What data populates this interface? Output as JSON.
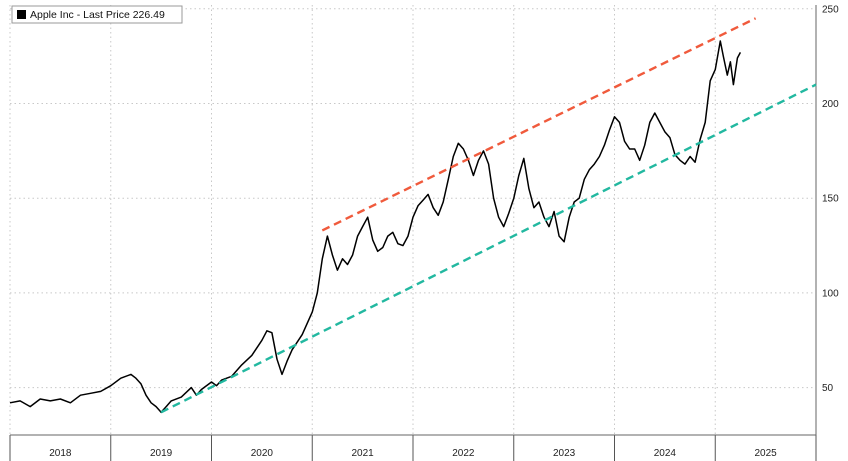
{
  "chart_data": {
    "type": "line",
    "legend": {
      "label": "Apple Inc - Last Price 226.49",
      "color": "#000000",
      "placement": "top-left"
    },
    "x_ticks": [
      "2018",
      "2019",
      "2020",
      "2021",
      "2022",
      "2023",
      "2024",
      "2025"
    ],
    "y_ticks": [
      50,
      100,
      150,
      200,
      250
    ],
    "xlim": [
      2017.5,
      2025.5
    ],
    "ylim": [
      25,
      252
    ],
    "grid": true,
    "series": [
      {
        "color": "#000000",
        "points": [
          [
            2017.5,
            42
          ],
          [
            2017.6,
            43
          ],
          [
            2017.7,
            40
          ],
          [
            2017.8,
            44
          ],
          [
            2017.9,
            43
          ],
          [
            2018.0,
            44
          ],
          [
            2018.1,
            42
          ],
          [
            2018.2,
            46
          ],
          [
            2018.3,
            47
          ],
          [
            2018.4,
            48
          ],
          [
            2018.5,
            51
          ],
          [
            2018.6,
            55
          ],
          [
            2018.7,
            57
          ],
          [
            2018.75,
            55
          ],
          [
            2018.8,
            52
          ],
          [
            2018.85,
            46
          ],
          [
            2018.9,
            42
          ],
          [
            2018.95,
            40
          ],
          [
            2019.0,
            37
          ],
          [
            2019.05,
            40
          ],
          [
            2019.1,
            43
          ],
          [
            2019.2,
            45
          ],
          [
            2019.3,
            50
          ],
          [
            2019.35,
            46
          ],
          [
            2019.4,
            49
          ],
          [
            2019.5,
            53
          ],
          [
            2019.55,
            51
          ],
          [
            2019.6,
            54
          ],
          [
            2019.7,
            56
          ],
          [
            2019.8,
            62
          ],
          [
            2019.9,
            67
          ],
          [
            2020.0,
            75
          ],
          [
            2020.05,
            80
          ],
          [
            2020.1,
            79
          ],
          [
            2020.15,
            65
          ],
          [
            2020.2,
            57
          ],
          [
            2020.25,
            64
          ],
          [
            2020.3,
            70
          ],
          [
            2020.4,
            78
          ],
          [
            2020.5,
            90
          ],
          [
            2020.55,
            100
          ],
          [
            2020.6,
            118
          ],
          [
            2020.65,
            130
          ],
          [
            2020.7,
            120
          ],
          [
            2020.75,
            112
          ],
          [
            2020.8,
            118
          ],
          [
            2020.85,
            115
          ],
          [
            2020.9,
            120
          ],
          [
            2020.95,
            130
          ],
          [
            2021.0,
            135
          ],
          [
            2021.05,
            140
          ],
          [
            2021.1,
            128
          ],
          [
            2021.15,
            122
          ],
          [
            2021.2,
            124
          ],
          [
            2021.25,
            130
          ],
          [
            2021.3,
            132
          ],
          [
            2021.35,
            126
          ],
          [
            2021.4,
            125
          ],
          [
            2021.45,
            130
          ],
          [
            2021.5,
            140
          ],
          [
            2021.55,
            146
          ],
          [
            2021.6,
            149
          ],
          [
            2021.65,
            152
          ],
          [
            2021.7,
            145
          ],
          [
            2021.75,
            141
          ],
          [
            2021.8,
            148
          ],
          [
            2021.85,
            160
          ],
          [
            2021.9,
            172
          ],
          [
            2021.95,
            179
          ],
          [
            2022.0,
            176
          ],
          [
            2022.05,
            170
          ],
          [
            2022.1,
            162
          ],
          [
            2022.15,
            170
          ],
          [
            2022.2,
            175
          ],
          [
            2022.25,
            168
          ],
          [
            2022.3,
            150
          ],
          [
            2022.35,
            140
          ],
          [
            2022.4,
            135
          ],
          [
            2022.45,
            142
          ],
          [
            2022.5,
            150
          ],
          [
            2022.55,
            162
          ],
          [
            2022.6,
            171
          ],
          [
            2022.65,
            155
          ],
          [
            2022.7,
            145
          ],
          [
            2022.75,
            148
          ],
          [
            2022.8,
            140
          ],
          [
            2022.85,
            135
          ],
          [
            2022.9,
            143
          ],
          [
            2022.95,
            130
          ],
          [
            2023.0,
            127
          ],
          [
            2023.05,
            140
          ],
          [
            2023.1,
            148
          ],
          [
            2023.15,
            150
          ],
          [
            2023.2,
            160
          ],
          [
            2023.25,
            165
          ],
          [
            2023.3,
            168
          ],
          [
            2023.35,
            172
          ],
          [
            2023.4,
            178
          ],
          [
            2023.45,
            186
          ],
          [
            2023.5,
            193
          ],
          [
            2023.55,
            190
          ],
          [
            2023.6,
            180
          ],
          [
            2023.65,
            176
          ],
          [
            2023.7,
            176
          ],
          [
            2023.75,
            170
          ],
          [
            2023.8,
            178
          ],
          [
            2023.85,
            190
          ],
          [
            2023.9,
            195
          ],
          [
            2023.95,
            190
          ],
          [
            2024.0,
            185
          ],
          [
            2024.05,
            182
          ],
          [
            2024.1,
            173
          ],
          [
            2024.15,
            170
          ],
          [
            2024.2,
            168
          ],
          [
            2024.25,
            172
          ],
          [
            2024.3,
            169
          ],
          [
            2024.35,
            181
          ],
          [
            2024.4,
            190
          ],
          [
            2024.45,
            212
          ],
          [
            2024.5,
            218
          ],
          [
            2024.55,
            233
          ],
          [
            2024.58,
            225
          ],
          [
            2024.62,
            215
          ],
          [
            2024.65,
            222
          ],
          [
            2024.68,
            210
          ],
          [
            2024.72,
            224
          ],
          [
            2024.75,
            227
          ]
        ]
      },
      {
        "color": "#f05a3c",
        "dashed": true,
        "points": [
          [
            2020.6,
            133
          ],
          [
            2024.9,
            245
          ]
        ]
      },
      {
        "color": "#22b8a0",
        "dashed": true,
        "points": [
          [
            2019.0,
            37
          ],
          [
            2025.5,
            210
          ]
        ]
      }
    ]
  }
}
